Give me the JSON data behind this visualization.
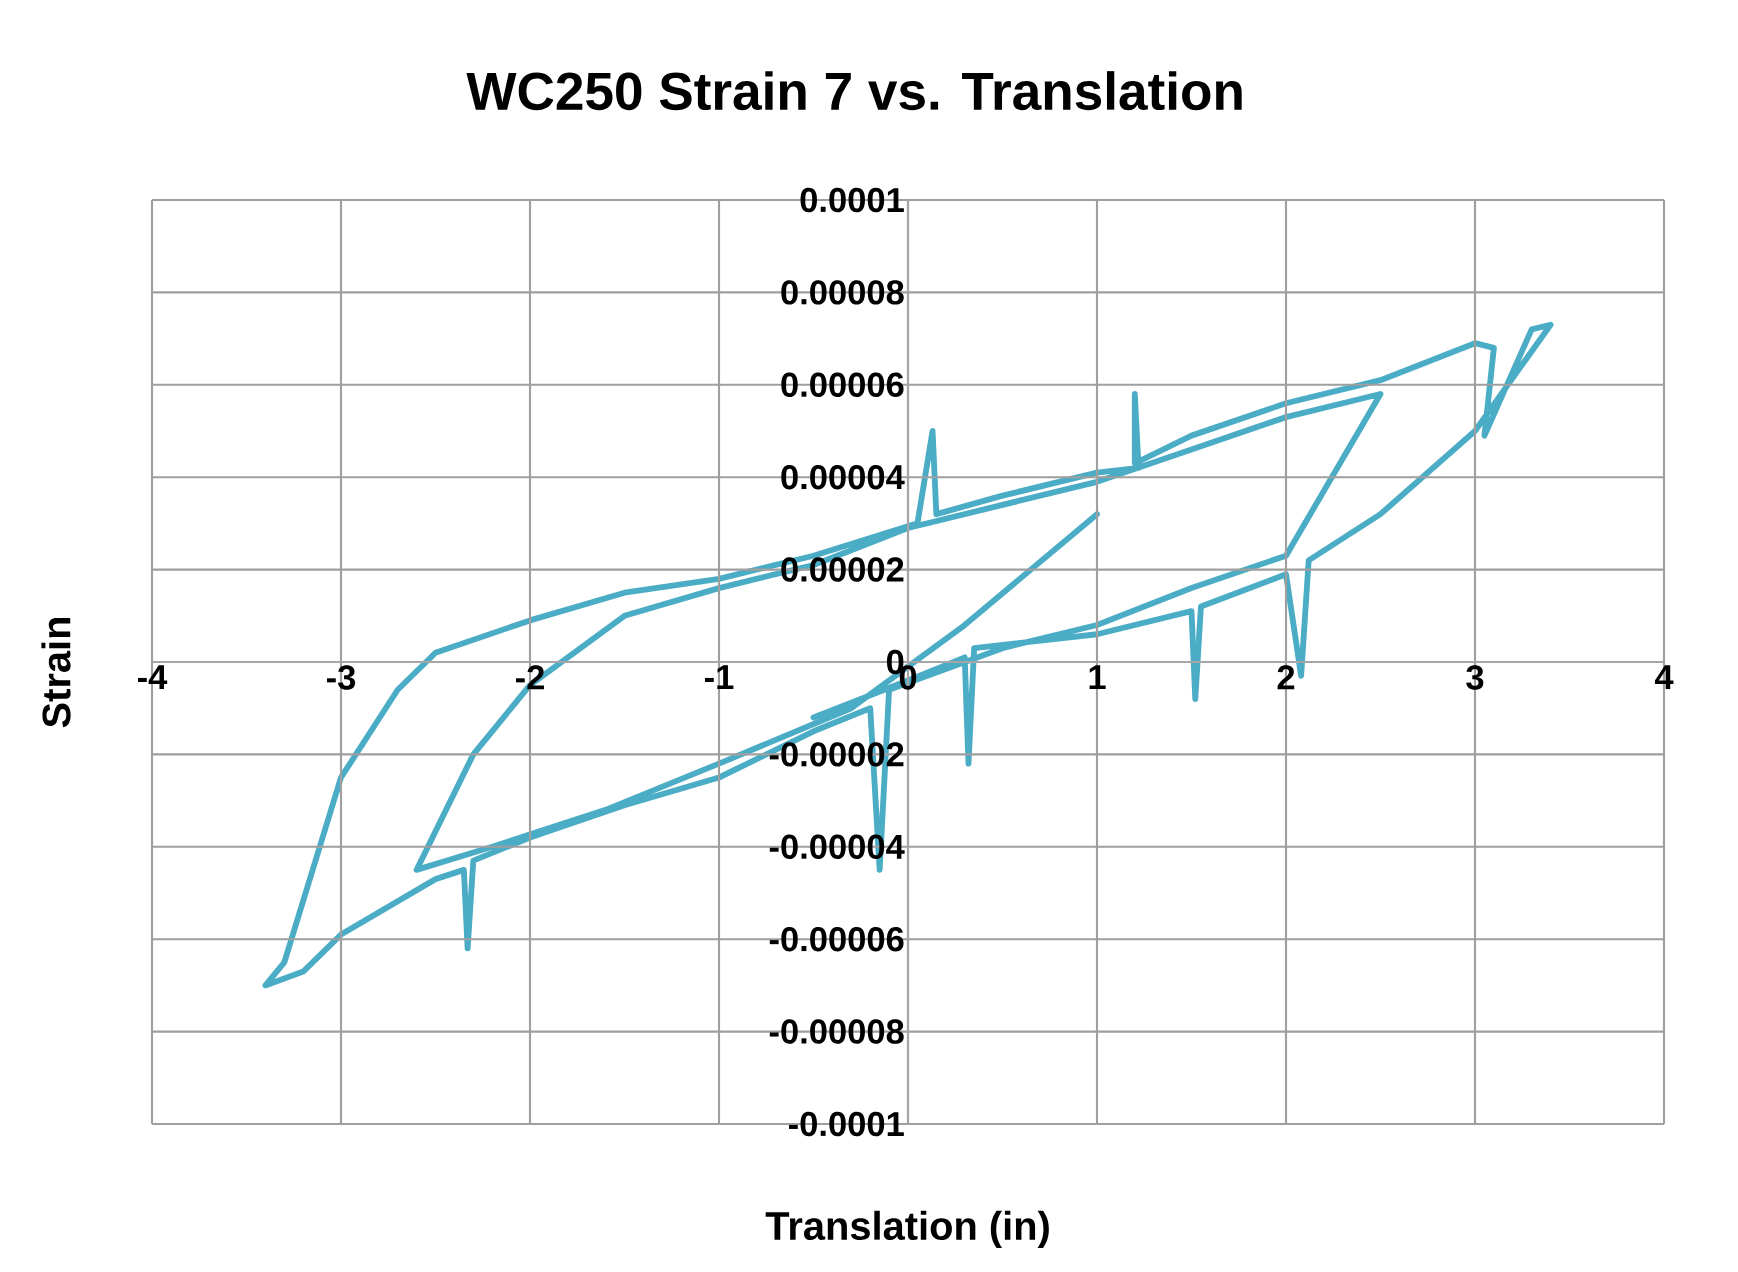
{
  "chart_data": {
    "type": "line",
    "title": "WC250 Strain 7 vs. Translation",
    "xlabel": "Translation (in)",
    "ylabel": "Strain",
    "xlim": [
      -4,
      4
    ],
    "xticks": [
      -4,
      -3,
      -2,
      -1,
      0,
      1,
      2,
      3,
      4
    ],
    "ylim": [
      -0.0001,
      0.0001
    ],
    "yticks": [
      {
        "value": -0.0001,
        "label": "-0.0001"
      },
      {
        "value": -8e-05,
        "label": "-0.00008"
      },
      {
        "value": -6e-05,
        "label": "-0.00006"
      },
      {
        "value": -4e-05,
        "label": "-0.00004"
      },
      {
        "value": -2e-05,
        "label": "-0.00002"
      },
      0,
      {
        "value": 2e-05,
        "label": "0.00002"
      },
      {
        "value": 4e-05,
        "label": "0.00004"
      },
      {
        "value": 6e-05,
        "label": "0.00006"
      },
      {
        "value": 8e-05,
        "label": "0.00008"
      },
      {
        "value": 0.0001,
        "label": "0.0001"
      }
    ],
    "grid": true,
    "line_style": "solid",
    "series": [
      {
        "color": "#4bacc6",
        "x": [
          -0.5,
          0,
          0.3,
          0.32,
          0.35,
          1,
          1.5,
          1.52,
          1.55,
          2,
          2.08,
          2.12,
          2.5,
          3,
          3.4,
          3.3,
          3.05,
          3.1,
          3.0,
          2.5,
          2.0,
          1.5,
          1.2,
          1.2,
          1.22,
          1.0,
          0.5,
          0.15,
          0.13,
          0.05,
          -0.5,
          -1,
          -1.5,
          -2,
          -2.5,
          -2.7,
          -3,
          -3.3,
          -3.4,
          -3.2,
          -3,
          -2.5,
          -2.35,
          -2.33,
          -2.3,
          -2,
          -1.5,
          -1,
          -0.5,
          -0.2,
          -0.15,
          -0.1,
          0.5,
          1,
          1.5,
          2,
          2.5,
          2,
          1.5,
          1,
          0.5,
          0,
          -0.5,
          -1,
          -1.5,
          -2,
          -2.3,
          -2.6,
          -2.2,
          -1.6,
          -1,
          -0.3,
          0.3,
          1
        ],
        "values": [
          -1.2e-05,
          -4e-06,
          1e-06,
          -2.2e-05,
          3e-06,
          6e-06,
          1.1e-05,
          -8e-06,
          1.2e-05,
          1.9e-05,
          -3e-06,
          2.2e-05,
          3.2e-05,
          5e-05,
          7.3e-05,
          7.2e-05,
          4.9e-05,
          6.8e-05,
          6.9e-05,
          6.1e-05,
          5.6e-05,
          4.9e-05,
          4.3e-05,
          5.8e-05,
          4.2e-05,
          4.1e-05,
          3.6e-05,
          3.2e-05,
          5e-05,
          3e-05,
          2.3e-05,
          1.8e-05,
          1.5e-05,
          9e-06,
          2e-06,
          -6e-06,
          -2.5e-05,
          -6.5e-05,
          -7e-05,
          -6.7e-05,
          -5.9e-05,
          -4.7e-05,
          -4.5e-05,
          -6.2e-05,
          -4.3e-05,
          -3.8e-05,
          -3.1e-05,
          -2.5e-05,
          -1.5e-05,
          -1e-05,
          -4.5e-05,
          -6e-06,
          3e-06,
          8e-06,
          1.6e-05,
          2.3e-05,
          5.8e-05,
          5.3e-05,
          4.6e-05,
          3.9e-05,
          3.4e-05,
          2.9e-05,
          2.1e-05,
          1.6e-05,
          1e-05,
          -5e-06,
          -2e-05,
          -4.5e-05,
          -4e-05,
          -3.2e-05,
          -2.2e-05,
          -1e-05,
          8e-06,
          3.2e-05
        ]
      }
    ]
  }
}
